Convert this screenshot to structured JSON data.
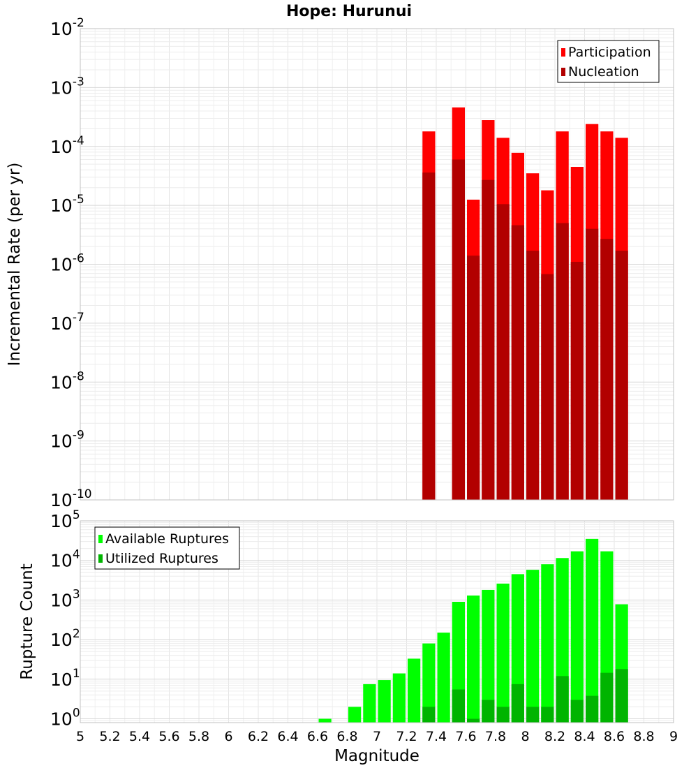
{
  "chart_data": {
    "type": "bar",
    "title": "Hope: Hurunui",
    "xlabel": "Magnitude",
    "xlim": [
      5,
      9
    ],
    "xticks": [
      "5",
      "5.2",
      "5.4",
      "5.6",
      "5.8",
      "6",
      "6.2",
      "6.4",
      "6.6",
      "6.8",
      "7",
      "7.2",
      "7.4",
      "7.6",
      "7.8",
      "8",
      "8.2",
      "8.4",
      "8.6",
      "8.8",
      "9"
    ],
    "bin_width": 0.1,
    "grid": true,
    "panels": [
      {
        "ylabel": "Incremental Rate (per yr)",
        "yscale": "log",
        "ylim": [
          1e-10,
          0.01
        ],
        "yticks": [
          {
            "base": "10",
            "exp": "-10"
          },
          {
            "base": "10",
            "exp": "-9"
          },
          {
            "base": "10",
            "exp": "-8"
          },
          {
            "base": "10",
            "exp": "-7"
          },
          {
            "base": "10",
            "exp": "-6"
          },
          {
            "base": "10",
            "exp": "-5"
          },
          {
            "base": "10",
            "exp": "-4"
          },
          {
            "base": "10",
            "exp": "-3"
          },
          {
            "base": "10",
            "exp": "-2"
          }
        ],
        "legend_position": "top-right",
        "series": [
          {
            "name": "Participation",
            "color": "#ff0000",
            "x": [
              7.35,
              7.55,
              7.65,
              7.75,
              7.85,
              7.95,
              8.05,
              8.15,
              8.25,
              8.35,
              8.45,
              8.55,
              8.65
            ],
            "values": [
              0.00018,
              0.00046,
              1.25e-05,
              0.00028,
              0.00014,
              7.8e-05,
              3.5e-05,
              1.8e-05,
              0.00018,
              4.5e-05,
              0.00024,
              0.00018,
              0.00014
            ]
          },
          {
            "name": "Nucleation",
            "color": "#b20000",
            "x": [
              7.35,
              7.55,
              7.65,
              7.75,
              7.85,
              7.95,
              8.05,
              8.15,
              8.25,
              8.35,
              8.45,
              8.55,
              8.65
            ],
            "values": [
              3.6e-05,
              6e-05,
              1.4e-06,
              2.7e-05,
              1.05e-05,
              4.6e-06,
              1.7e-06,
              6.8e-07,
              5e-06,
              1.1e-06,
              4e-06,
              2.7e-06,
              1.7e-06
            ]
          }
        ]
      },
      {
        "ylabel": "Rupture Count",
        "yscale": "log",
        "ylim": [
          0.8,
          100000.0
        ],
        "yticks": [
          {
            "base": "10",
            "exp": "0"
          },
          {
            "base": "10",
            "exp": "1"
          },
          {
            "base": "10",
            "exp": "2"
          },
          {
            "base": "10",
            "exp": "3"
          },
          {
            "base": "10",
            "exp": "4"
          },
          {
            "base": "10",
            "exp": "5"
          }
        ],
        "legend_position": "top-left",
        "series": [
          {
            "name": "Available Ruptures",
            "color": "#00ff00",
            "x": [
              6.65,
              6.85,
              6.95,
              7.05,
              7.15,
              7.25,
              7.35,
              7.45,
              7.55,
              7.65,
              7.75,
              7.85,
              7.95,
              8.05,
              8.15,
              8.25,
              8.35,
              8.45,
              8.55,
              8.65
            ],
            "values": [
              1,
              2,
              7.5,
              9.5,
              14,
              33,
              80,
              150,
              900,
              1300,
              1800,
              2600,
              4500,
              5800,
              8000,
              11500,
              17000,
              35000,
              17000,
              780
            ]
          },
          {
            "name": "Utilized Ruptures",
            "color": "#00b400",
            "x": [
              7.35,
              7.55,
              7.65,
              7.75,
              7.85,
              7.95,
              8.05,
              8.15,
              8.25,
              8.35,
              8.45,
              8.55,
              8.65
            ],
            "values": [
              2,
              5.5,
              1,
              3,
              2,
              7.5,
              2,
              2,
              12,
              3,
              3.8,
              14.5,
              18
            ]
          }
        ]
      }
    ]
  }
}
